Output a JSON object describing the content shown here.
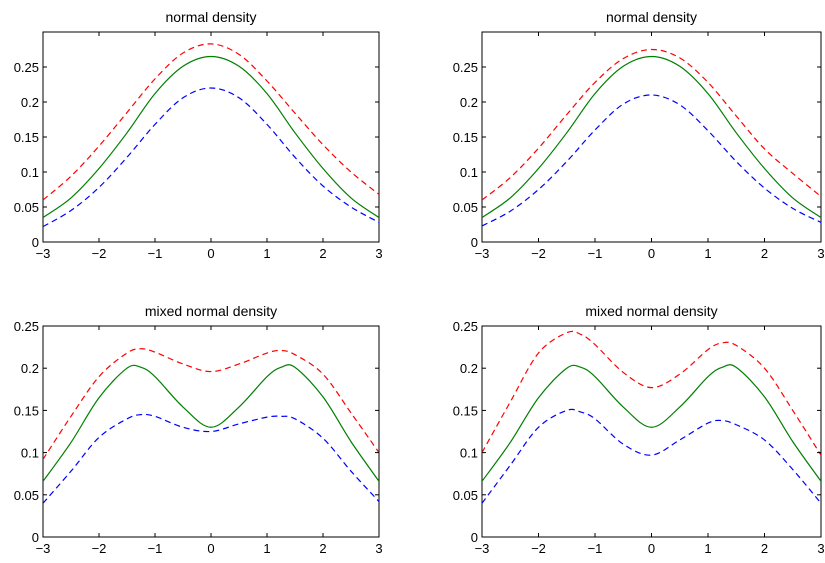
{
  "chart_data": [
    {
      "type": "line",
      "title": "normal density",
      "xlabel": "",
      "ylabel": "",
      "xlim": [
        -3,
        3
      ],
      "ylim": [
        0,
        0.3
      ],
      "xticks": [
        -3,
        -2,
        -1,
        0,
        1,
        2,
        3
      ],
      "xtick_labels": [
        "−3",
        "−2",
        "−1",
        "0",
        "1",
        "2",
        "3"
      ],
      "yticks": [
        0,
        0.05,
        0.1,
        0.15,
        0.2,
        0.25
      ],
      "ytick_labels": [
        "0",
        "0.05",
        "0.1",
        "0.15",
        "0.2",
        "0.25"
      ],
      "grid": false,
      "x": [
        -3,
        -2.5,
        -2,
        -1.5,
        -1,
        -0.5,
        0,
        0.5,
        1,
        1.5,
        2,
        2.5,
        3
      ],
      "series": [
        {
          "color": "#ff0000",
          "style": "dashed",
          "values": [
            0.06,
            0.094,
            0.137,
            0.185,
            0.233,
            0.27,
            0.283,
            0.268,
            0.23,
            0.184,
            0.139,
            0.1,
            0.068
          ]
        },
        {
          "color": "#007f00",
          "style": "solid",
          "values": [
            0.035,
            0.063,
            0.105,
            0.156,
            0.212,
            0.251,
            0.265,
            0.251,
            0.212,
            0.156,
            0.105,
            0.063,
            0.035
          ]
        },
        {
          "color": "#0000ff",
          "style": "dashed",
          "values": [
            0.022,
            0.045,
            0.078,
            0.121,
            0.168,
            0.206,
            0.22,
            0.206,
            0.168,
            0.121,
            0.08,
            0.05,
            0.028
          ]
        }
      ]
    },
    {
      "type": "line",
      "title": "normal density",
      "xlabel": "",
      "ylabel": "",
      "xlim": [
        -3,
        3
      ],
      "ylim": [
        0,
        0.3
      ],
      "xticks": [
        -3,
        -2,
        -1,
        0,
        1,
        2,
        3
      ],
      "xtick_labels": [
        "−3",
        "−2",
        "−1",
        "0",
        "1",
        "2",
        "3"
      ],
      "yticks": [
        0,
        0.05,
        0.1,
        0.15,
        0.2,
        0.25
      ],
      "ytick_labels": [
        "0",
        "0.05",
        "0.1",
        "0.15",
        "0.2",
        "0.25"
      ],
      "grid": false,
      "x": [
        -3,
        -2.5,
        -2,
        -1.5,
        -1,
        -0.5,
        0,
        0.5,
        1,
        1.5,
        2,
        2.5,
        3
      ],
      "series": [
        {
          "color": "#ff0000",
          "style": "dashed",
          "values": [
            0.06,
            0.092,
            0.134,
            0.182,
            0.228,
            0.262,
            0.275,
            0.263,
            0.228,
            0.18,
            0.133,
            0.098,
            0.065
          ]
        },
        {
          "color": "#007f00",
          "style": "solid",
          "values": [
            0.035,
            0.063,
            0.105,
            0.156,
            0.212,
            0.251,
            0.265,
            0.251,
            0.212,
            0.156,
            0.105,
            0.063,
            0.035
          ]
        },
        {
          "color": "#0000ff",
          "style": "dashed",
          "values": [
            0.023,
            0.044,
            0.075,
            0.115,
            0.16,
            0.197,
            0.21,
            0.196,
            0.159,
            0.115,
            0.077,
            0.048,
            0.028
          ]
        }
      ]
    },
    {
      "type": "line",
      "title": "mixed normal density",
      "xlabel": "",
      "ylabel": "",
      "xlim": [
        -3,
        3
      ],
      "ylim": [
        0,
        0.25
      ],
      "xticks": [
        -3,
        -2,
        -1,
        0,
        1,
        2,
        3
      ],
      "xtick_labels": [
        "−3",
        "−2",
        "−1",
        "0",
        "1",
        "2",
        "3"
      ],
      "yticks": [
        0,
        0.05,
        0.1,
        0.15,
        0.2,
        0.25
      ],
      "ytick_labels": [
        "0",
        "0.05",
        "0.1",
        "0.15",
        "0.2",
        "0.25"
      ],
      "grid": false,
      "x": [
        -3,
        -2.5,
        -2,
        -1.5,
        -1.25,
        -1,
        -0.5,
        0,
        0.5,
        1,
        1.25,
        1.5,
        2,
        2.5,
        3
      ],
      "series": [
        {
          "color": "#ff0000",
          "style": "dashed",
          "values": [
            0.092,
            0.143,
            0.19,
            0.218,
            0.223,
            0.219,
            0.205,
            0.196,
            0.205,
            0.218,
            0.221,
            0.216,
            0.193,
            0.147,
            0.1
          ]
        },
        {
          "color": "#007f00",
          "style": "solid",
          "values": [
            0.066,
            0.112,
            0.165,
            0.2,
            0.201,
            0.19,
            0.154,
            0.13,
            0.154,
            0.19,
            0.201,
            0.201,
            0.166,
            0.113,
            0.066
          ]
        },
        {
          "color": "#0000ff",
          "style": "dashed",
          "values": [
            0.04,
            0.078,
            0.118,
            0.14,
            0.145,
            0.143,
            0.13,
            0.125,
            0.134,
            0.142,
            0.143,
            0.14,
            0.117,
            0.078,
            0.042
          ]
        }
      ]
    },
    {
      "type": "line",
      "title": "mixed normal density",
      "xlabel": "",
      "ylabel": "",
      "xlim": [
        -3,
        3
      ],
      "ylim": [
        0,
        0.25
      ],
      "xticks": [
        -3,
        -2,
        -1,
        0,
        1,
        2,
        3
      ],
      "xtick_labels": [
        "−3",
        "−2",
        "−1",
        "0",
        "1",
        "2",
        "3"
      ],
      "yticks": [
        0,
        0.05,
        0.1,
        0.15,
        0.2,
        0.25
      ],
      "ytick_labels": [
        "0",
        "0.05",
        "0.1",
        "0.15",
        "0.2",
        "0.25"
      ],
      "grid": false,
      "x": [
        -3,
        -2.5,
        -2,
        -1.5,
        -1.25,
        -1,
        -0.5,
        0,
        0.5,
        1,
        1.25,
        1.5,
        2,
        2.5,
        3
      ],
      "series": [
        {
          "color": "#ff0000",
          "style": "dashed",
          "values": [
            0.1,
            0.16,
            0.218,
            0.242,
            0.24,
            0.228,
            0.195,
            0.177,
            0.193,
            0.222,
            0.23,
            0.227,
            0.2,
            0.15,
            0.097
          ]
        },
        {
          "color": "#007f00",
          "style": "solid",
          "values": [
            0.066,
            0.112,
            0.165,
            0.2,
            0.201,
            0.19,
            0.154,
            0.13,
            0.154,
            0.19,
            0.201,
            0.201,
            0.166,
            0.113,
            0.066
          ]
        },
        {
          "color": "#0000ff",
          "style": "dashed",
          "values": [
            0.04,
            0.085,
            0.13,
            0.15,
            0.148,
            0.14,
            0.11,
            0.097,
            0.115,
            0.135,
            0.138,
            0.133,
            0.115,
            0.08,
            0.04
          ]
        }
      ]
    }
  ]
}
